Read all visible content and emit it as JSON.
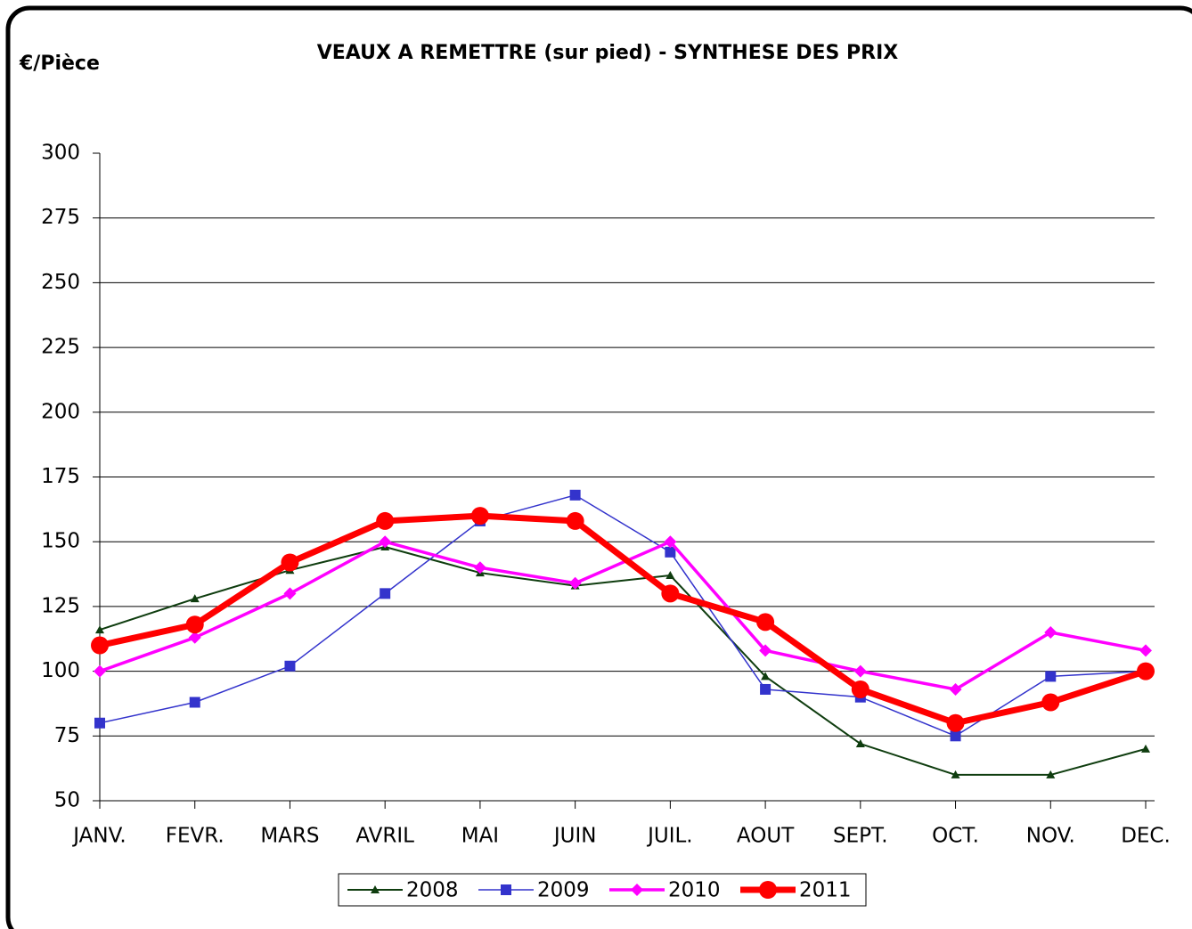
{
  "chart_data": {
    "type": "line",
    "title": "VEAUX A REMETTRE (sur pied) - SYNTHESE DES PRIX",
    "y_label": "€/Pièce",
    "categories": [
      "JANV.",
      "FEVR.",
      "MARS",
      "AVRIL",
      "MAI",
      "JUIN",
      "JUIL.",
      "AOUT",
      "SEPT.",
      "OCT.",
      "NOV.",
      "DEC."
    ],
    "series": [
      {
        "name": "2008",
        "color": "#0f3d0f",
        "marker": "triangle",
        "values": [
          116,
          128,
          139,
          148,
          138,
          133,
          137,
          98,
          72,
          60,
          60,
          70
        ]
      },
      {
        "name": "2009",
        "color": "#3333cc",
        "marker": "square",
        "values": [
          80,
          88,
          102,
          130,
          158,
          168,
          146,
          93,
          90,
          75,
          98,
          100
        ]
      },
      {
        "name": "2010",
        "color": "#ff00ff",
        "marker": "diamond",
        "values": [
          100,
          113,
          130,
          150,
          140,
          134,
          150,
          108,
          100,
          93,
          115,
          108
        ]
      },
      {
        "name": "2011",
        "color": "#ff0000",
        "marker": "circle",
        "values": [
          110,
          118,
          142,
          158,
          160,
          158,
          130,
          119,
          93,
          80,
          88,
          100
        ]
      }
    ],
    "ylim": [
      50,
      300
    ],
    "yticks": [
      50,
      75,
      100,
      125,
      150,
      175,
      200,
      225,
      250,
      275,
      300
    ],
    "grid": true,
    "legend": "bottom"
  }
}
